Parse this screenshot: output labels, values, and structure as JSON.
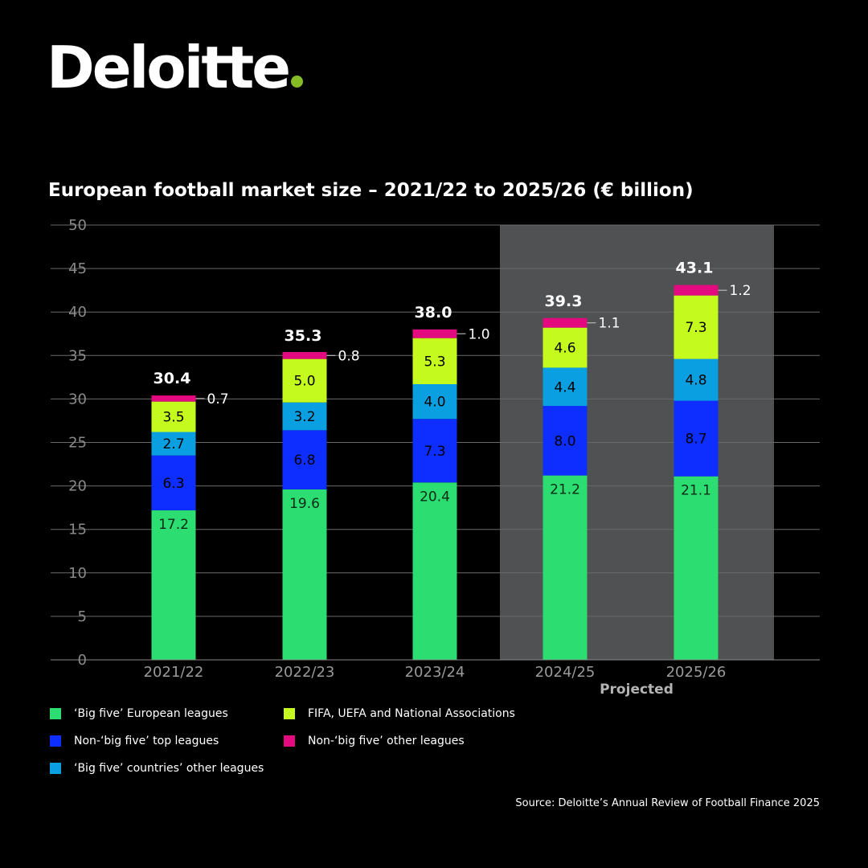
{
  "brand": {
    "name": "Deloitte",
    "dot_color": "#86BC25"
  },
  "chart_data": {
    "type": "bar",
    "stacked": true,
    "title": "European football market size – 2021/22 to 2025/26 (€ billion)",
    "categories": [
      "2021/22",
      "2022/23",
      "2023/24",
      "2024/25",
      "2025/26"
    ],
    "series": [
      {
        "name": "‘Big five’ European leagues",
        "color": "#2CDD72",
        "values": [
          17.2,
          19.6,
          20.4,
          21.2,
          21.1
        ]
      },
      {
        "name": "Non-‘big five’ top leagues",
        "color": "#0D2EFF",
        "values": [
          6.3,
          6.8,
          7.3,
          8.0,
          8.7
        ]
      },
      {
        "name": "‘Big five’ countries’ other leagues",
        "color": "#0A9FE0",
        "values": [
          2.7,
          3.2,
          4.0,
          4.4,
          4.8
        ]
      },
      {
        "name": "FIFA, UEFA and National Associations",
        "color": "#C5FA1F",
        "values": [
          3.5,
          5.0,
          5.3,
          4.6,
          7.3
        ]
      },
      {
        "name": "Non-‘big five’ other leagues",
        "color": "#E3097E",
        "values": [
          0.7,
          0.8,
          1.0,
          1.1,
          1.2
        ]
      }
    ],
    "totals": [
      30.4,
      35.3,
      38.0,
      39.3,
      43.1
    ],
    "value_labels": [
      [
        "17.2",
        "6.3",
        "2.7",
        "3.5",
        "0.7"
      ],
      [
        "19.6",
        "6.8",
        "3.2",
        "5.0",
        "0.8"
      ],
      [
        "20.4",
        "7.3",
        "4.0",
        "5.3",
        "1.0"
      ],
      [
        "21.2",
        "8.0",
        "4.4",
        "4.6",
        "1.1"
      ],
      [
        "21.1",
        "8.7",
        "4.8",
        "7.3",
        "1.2"
      ]
    ],
    "total_labels": [
      "30.4",
      "35.3",
      "38.0",
      "39.3",
      "43.1"
    ],
    "ylim": [
      0,
      50
    ],
    "yticks": [
      0,
      5,
      10,
      15,
      20,
      25,
      30,
      35,
      40,
      45,
      50
    ],
    "grid": true,
    "projected": {
      "label": "Projected",
      "categories": [
        "2024/25",
        "2025/26"
      ],
      "shade_color": "#505153"
    },
    "legend_position": "bottom"
  },
  "source": "Source: Deloitte’s Annual Review of Football Finance 2025"
}
